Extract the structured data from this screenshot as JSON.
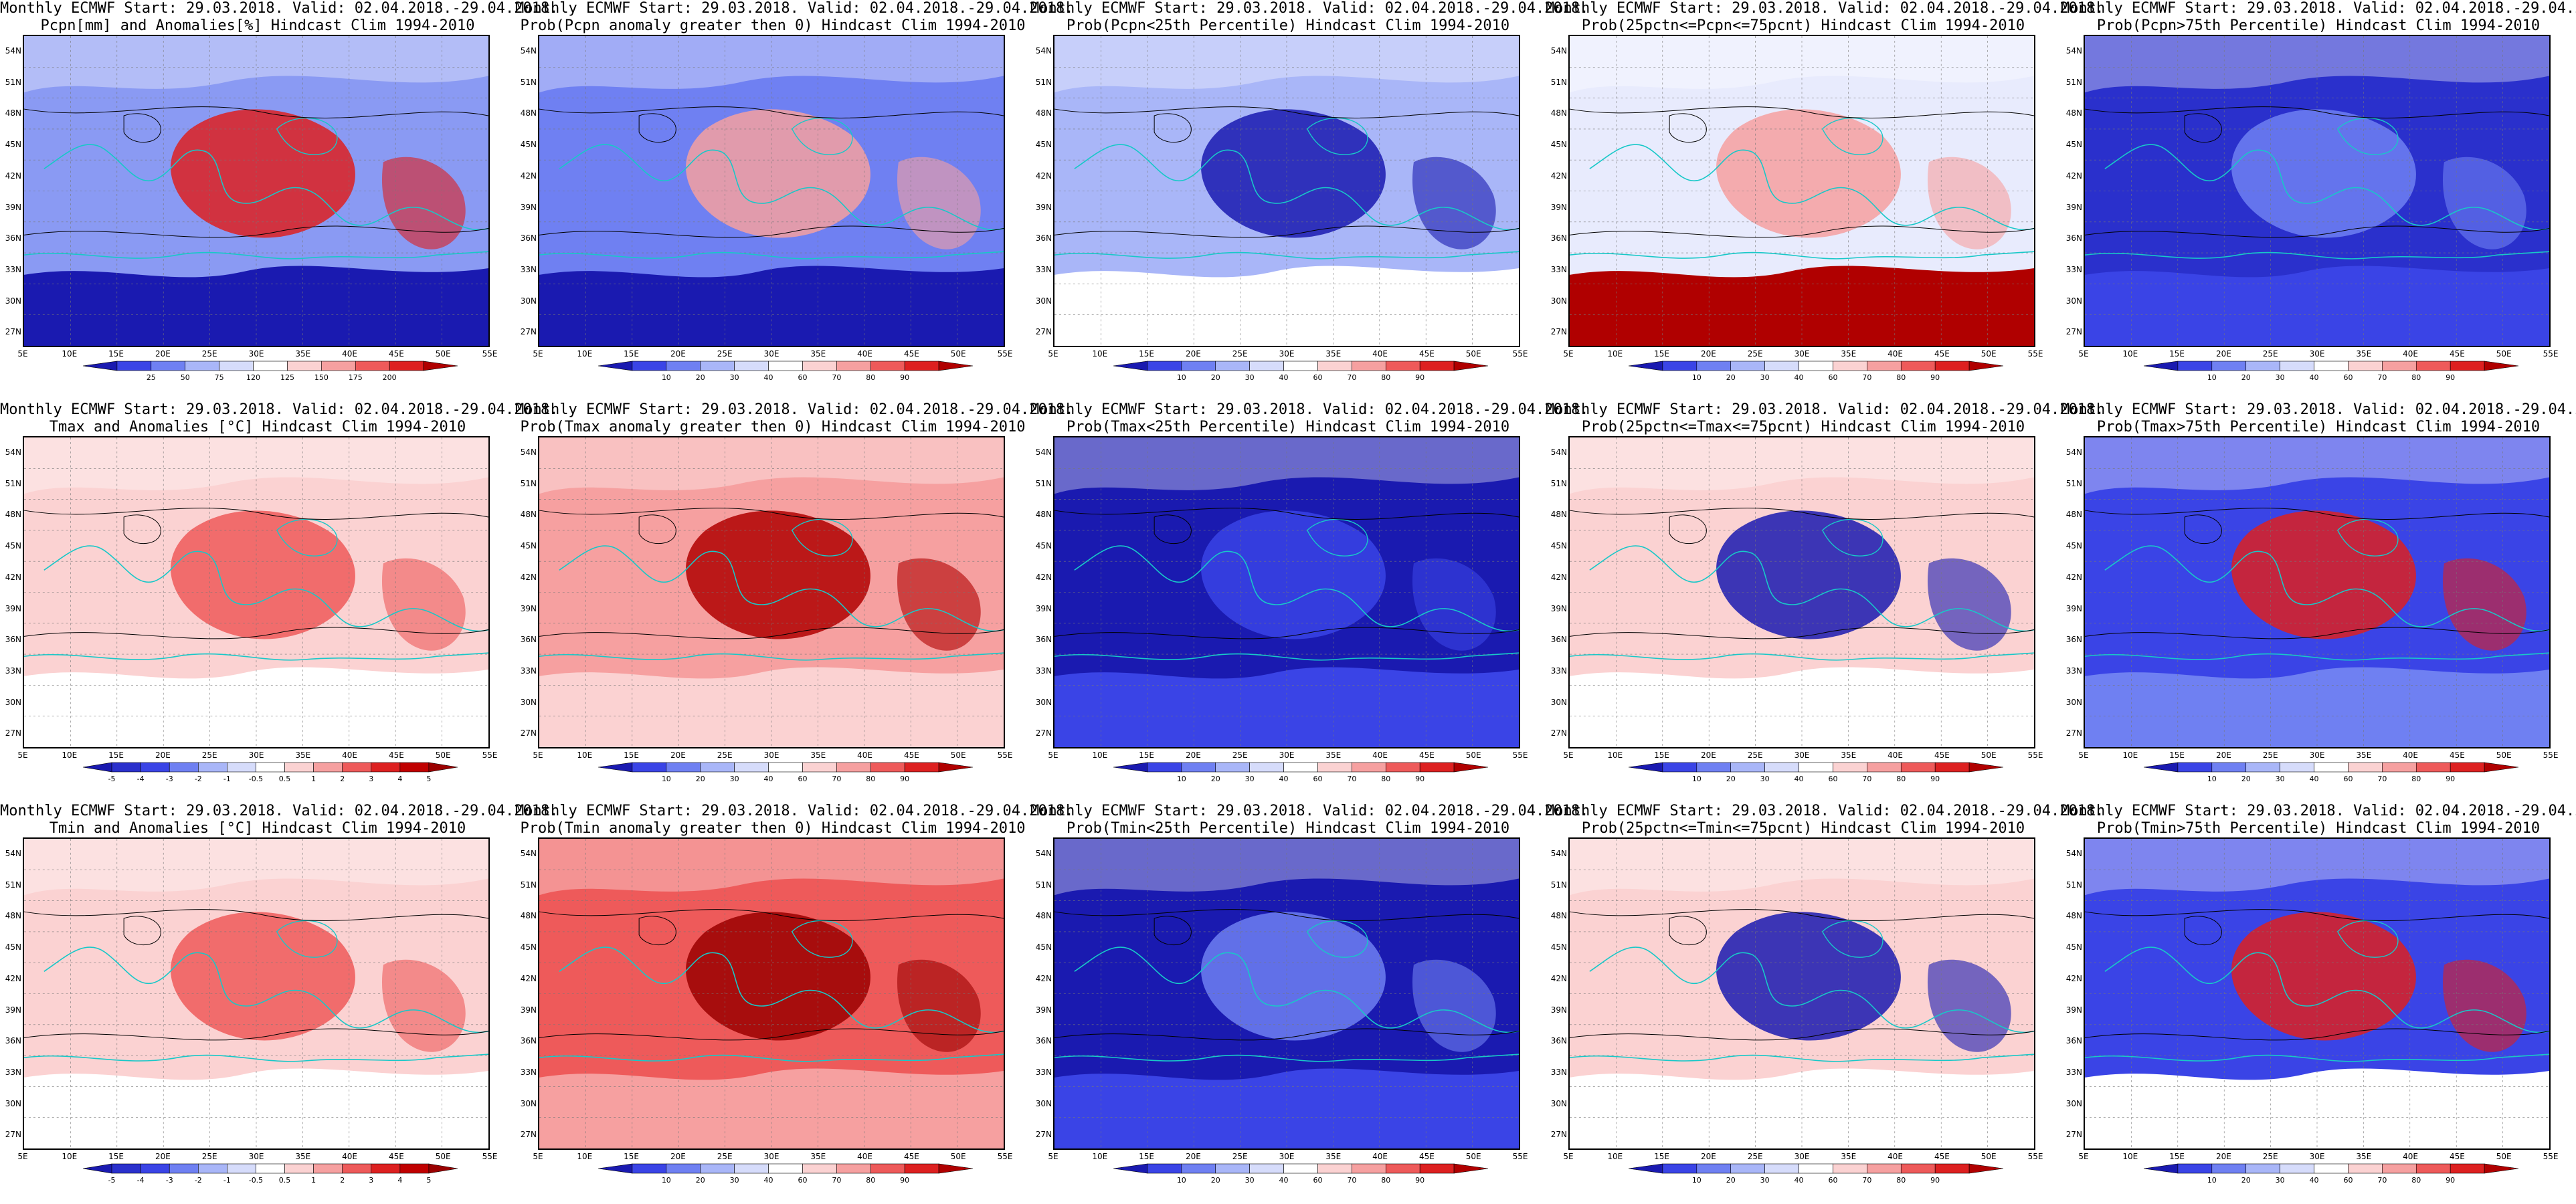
{
  "common": {
    "title_line1": "Monthly ECMWF Start: 29.03.2018. Valid: 02.04.2018.-29.04.2018.",
    "hindcast": "Hindcast Clim 1994-2010",
    "lat_labels": [
      "54N",
      "51N",
      "48N",
      "45N",
      "42N",
      "39N",
      "36N",
      "33N",
      "30N",
      "27N"
    ],
    "lon_labels": [
      "5E",
      "10E",
      "15E",
      "20E",
      "25E",
      "30E",
      "35E",
      "40E",
      "45E",
      "50E",
      "55E"
    ]
  },
  "colorbars": {
    "pcpn_anom": {
      "labels": [
        "25",
        "50",
        "75",
        "120",
        "125",
        "150",
        "175",
        "200"
      ],
      "colors": [
        "#1a1ab0",
        "#3a44e6",
        "#6f80f2",
        "#a9b6f8",
        "#d6dcfb",
        "#ffffff",
        "#fbd2d2",
        "#f6a0a0",
        "#ee5a5a",
        "#dd2020",
        "#b00000"
      ]
    },
    "prob_blue_red": {
      "labels": [
        "10",
        "20",
        "30",
        "40",
        "60",
        "70",
        "80",
        "90"
      ],
      "colors": [
        "#1a1ab0",
        "#3a44e6",
        "#6f80f2",
        "#a9b6f8",
        "#d6dcfb",
        "#ffffff",
        "#fbd2d2",
        "#f6a0a0",
        "#ee5a5a",
        "#dd2020",
        "#b00000"
      ]
    },
    "temp_anom": {
      "labels": [
        "-5",
        "-4",
        "-3",
        "-2",
        "-1",
        "-0.5",
        "0.5",
        "1",
        "2",
        "3",
        "4",
        "5"
      ],
      "colors": [
        "#1a1ab0",
        "#2a30cc",
        "#3a44e6",
        "#6f80f2",
        "#a9b6f8",
        "#d6dcfb",
        "#ffffff",
        "#fbd2d2",
        "#f6a0a0",
        "#ee5a5a",
        "#dd2020",
        "#c00000",
        "#9a0000"
      ]
    }
  },
  "panels": [
    {
      "title2": "Pcpn[mm] and Anomalies[%]",
      "colorbar": "pcpn_anom",
      "fill": "#8a9af3",
      "bottom": "#1a1ab0",
      "hot": "#dd2020",
      "row": 0,
      "col": 0
    },
    {
      "title2": "Prob(Pcpn anomaly greater then 0)",
      "colorbar": "prob_blue_red",
      "fill": "#6f80f2",
      "bottom": "#1a1ab0",
      "hot": "#f6a0a0",
      "row": 0,
      "col": 1
    },
    {
      "title2": "Prob(Pcpn<25th Percentile)",
      "colorbar": "prob_blue_red",
      "fill": "#a9b6f8",
      "bottom": "#ffffff",
      "hot": "#1a1ab0",
      "row": 0,
      "col": 2
    },
    {
      "title2": "Prob(25pctn<=Pcpn<=75pcnt)",
      "colorbar": "prob_blue_red",
      "fill": "#e8ebfd",
      "bottom": "#b00000",
      "hot": "#f6a0a0",
      "row": 0,
      "col": 3
    },
    {
      "title2": "Prob(Pcpn>75th Percentile)",
      "colorbar": "prob_blue_red",
      "fill": "#2a30cc",
      "bottom": "#3a44e6",
      "hot": "#6f80f2",
      "row": 0,
      "col": 4
    },
    {
      "title2": "Tmax and Anomalies [°C]",
      "colorbar": "temp_anom",
      "fill": "#fbd2d2",
      "bottom": "#ffffff",
      "hot": "#ee5a5a",
      "row": 1,
      "col": 0
    },
    {
      "title2": "Prob(Tmax anomaly greater then 0)",
      "colorbar": "prob_blue_red",
      "fill": "#f6a0a0",
      "bottom": "#fbd2d2",
      "hot": "#b00000",
      "row": 1,
      "col": 1
    },
    {
      "title2": "Prob(Tmax<25th Percentile)",
      "colorbar": "prob_blue_red",
      "fill": "#1a1ab0",
      "bottom": "#3a44e6",
      "hot": "#3a44e6",
      "row": 1,
      "col": 2
    },
    {
      "title2": "Prob(25pctn<=Tmax<=75pcnt)",
      "colorbar": "prob_blue_red",
      "fill": "#fbd2d2",
      "bottom": "#ffffff",
      "hot": "#1a1ab0",
      "row": 1,
      "col": 3
    },
    {
      "title2": "Prob(Tmax>75th Percentile)",
      "colorbar": "prob_blue_red",
      "fill": "#3a44e6",
      "bottom": "#6f80f2",
      "hot": "#dd2020",
      "row": 1,
      "col": 4
    },
    {
      "title2": "Tmin and Anomalies [°C]",
      "colorbar": "temp_anom",
      "fill": "#fbd2d2",
      "bottom": "#ffffff",
      "hot": "#ee5a5a",
      "row": 2,
      "col": 0
    },
    {
      "title2": "Prob(Tmin anomaly greater then 0)",
      "colorbar": "prob_blue_red",
      "fill": "#ee5a5a",
      "bottom": "#f6a0a0",
      "hot": "#9a0000",
      "row": 2,
      "col": 1
    },
    {
      "title2": "Prob(Tmin<25th Percentile)",
      "colorbar": "prob_blue_red",
      "fill": "#1a1ab0",
      "bottom": "#3a44e6",
      "hot": "#6f80f2",
      "row": 2,
      "col": 2
    },
    {
      "title2": "Prob(25pctn<=Tmin<=75pcnt)",
      "colorbar": "prob_blue_red",
      "fill": "#fbd2d2",
      "bottom": "#ffffff",
      "hot": "#1a1ab0",
      "row": 2,
      "col": 3
    },
    {
      "title2": "Prob(Tmin>75th Percentile)",
      "colorbar": "prob_blue_red",
      "fill": "#3a44e6",
      "bottom": "#ffffff",
      "hot": "#dd2020",
      "row": 2,
      "col": 4
    }
  ]
}
